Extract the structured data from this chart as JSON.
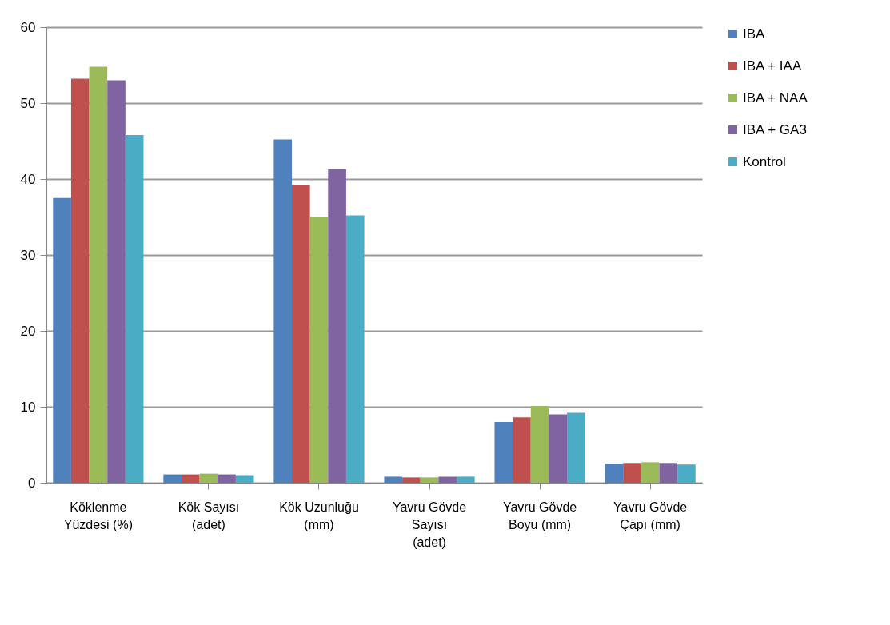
{
  "chart_data": {
    "type": "bar",
    "categories": [
      "Köklenme Yüzdesi (%)",
      "Kök Sayısı (adet)",
      "Kök Uzunluğu (mm)",
      "Yavru Gövde Sayısı (adet)",
      "Yavru Gövde Boyu (mm)",
      "Yavru Gövde Çapı (mm)"
    ],
    "series": [
      {
        "name": "IBA",
        "color": "#4f81bd",
        "values": [
          37.5,
          1.1,
          45.2,
          0.8,
          8.0,
          2.5
        ]
      },
      {
        "name": "IBA + IAA",
        "color": "#c0504d",
        "values": [
          53.2,
          1.1,
          39.2,
          0.7,
          8.6,
          2.6
        ]
      },
      {
        "name": "IBA + NAA",
        "color": "#9bbb59",
        "values": [
          54.8,
          1.2,
          35.0,
          0.7,
          10.1,
          2.7
        ]
      },
      {
        "name": "IBA + GA3",
        "color": "#8064a2",
        "values": [
          53.0,
          1.1,
          41.3,
          0.8,
          9.0,
          2.6
        ]
      },
      {
        "name": "Kontrol",
        "color": "#4bacc6",
        "values": [
          45.8,
          1.0,
          35.2,
          0.8,
          9.2,
          2.4
        ]
      }
    ],
    "ylim": [
      0,
      60
    ],
    "yticks": [
      0,
      10,
      20,
      30,
      40,
      50,
      60
    ],
    "grid": "y",
    "legend": "right"
  }
}
